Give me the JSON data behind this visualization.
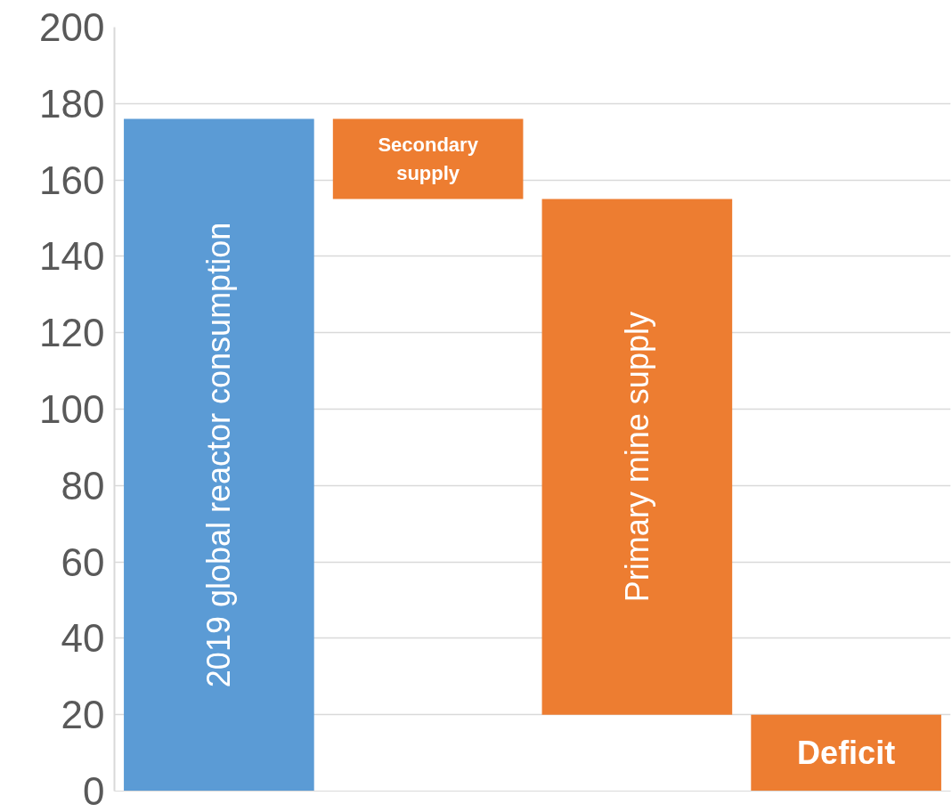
{
  "chart_data": {
    "type": "bar",
    "categories": [
      "2019 global reactor consumption",
      "Secondary supply",
      "Primary mine supply",
      "Deficit"
    ],
    "values": [
      176,
      21,
      135,
      20
    ],
    "base": [
      0,
      155,
      20,
      0
    ],
    "colors": [
      "#5b9bd5",
      "#ed7d31",
      "#ed7d31",
      "#ed7d31"
    ],
    "ylim": [
      0,
      200
    ],
    "yticks": [
      0,
      20,
      40,
      60,
      80,
      100,
      120,
      140,
      160,
      180,
      200
    ],
    "grid": "y",
    "tick_labels": "y"
  }
}
